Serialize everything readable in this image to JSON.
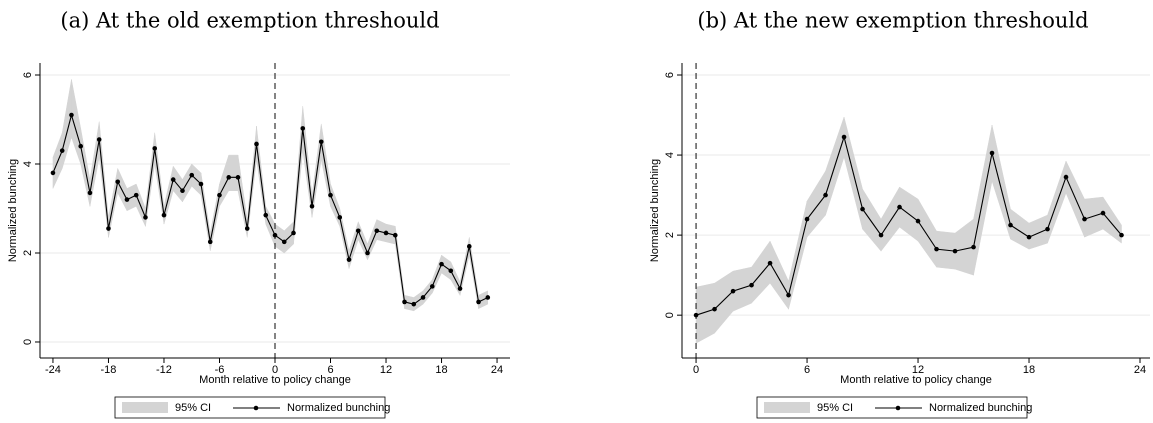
{
  "chart_data": [
    {
      "type": "line",
      "title": "(a) At the old exemption threshould",
      "xlabel": "Month relative to policy change",
      "ylabel": "Normalized bunching",
      "x": [
        -24,
        -23,
        -22,
        -21,
        -20,
        -19,
        -18,
        -17,
        -16,
        -15,
        -14,
        -13,
        -12,
        -11,
        -10,
        -9,
        -8,
        -7,
        -6,
        -5,
        -4,
        -3,
        -2,
        -1,
        0,
        1,
        2,
        3,
        4,
        5,
        6,
        7,
        8,
        9,
        10,
        11,
        12,
        13,
        14,
        15,
        16,
        17,
        18,
        19,
        20,
        21,
        22,
        23
      ],
      "series": [
        {
          "name": "95% CI",
          "color": "#d4d4d4",
          "lower": [
            3.45,
            3.9,
            4.6,
            4.0,
            3.05,
            4.15,
            2.35,
            3.35,
            2.95,
            3.05,
            2.6,
            4.0,
            2.65,
            3.4,
            3.15,
            3.5,
            3.3,
            2.05,
            3.05,
            3.4,
            3.4,
            2.35,
            4.1,
            2.65,
            2.15,
            2.0,
            2.2,
            4.3,
            2.8,
            4.1,
            3.05,
            2.6,
            1.65,
            2.3,
            1.85,
            2.3,
            2.25,
            2.2,
            0.75,
            0.7,
            0.85,
            1.1,
            1.55,
            1.4,
            1.05,
            1.95,
            0.75,
            0.85
          ],
          "upper": [
            4.15,
            4.7,
            5.9,
            4.8,
            3.65,
            4.95,
            2.8,
            3.9,
            3.45,
            3.55,
            3.0,
            4.7,
            3.05,
            3.95,
            3.65,
            4.0,
            3.8,
            2.45,
            3.55,
            4.2,
            4.2,
            2.75,
            4.85,
            3.05,
            2.65,
            2.5,
            2.7,
            5.3,
            3.3,
            4.9,
            3.55,
            3.0,
            2.05,
            2.7,
            2.2,
            2.75,
            2.65,
            2.6,
            1.05,
            1.0,
            1.15,
            1.4,
            1.95,
            1.8,
            1.35,
            2.35,
            1.05,
            1.15
          ]
        },
        {
          "name": "Normalized bunching",
          "color": "#000000",
          "values": [
            3.8,
            4.3,
            5.1,
            4.4,
            3.35,
            4.55,
            2.55,
            3.6,
            3.2,
            3.3,
            2.8,
            4.35,
            2.85,
            3.65,
            3.4,
            3.75,
            3.55,
            2.25,
            3.3,
            3.7,
            3.7,
            2.55,
            4.45,
            2.85,
            2.4,
            2.25,
            2.45,
            4.8,
            3.05,
            4.5,
            3.3,
            2.8,
            1.85,
            2.5,
            2.0,
            2.5,
            2.45,
            2.4,
            0.9,
            0.85,
            1.0,
            1.25,
            1.75,
            1.6,
            1.2,
            2.15,
            0.9,
            1.0
          ]
        }
      ],
      "ref_line_x": 0,
      "xlim": [
        -25.4,
        25.4
      ],
      "xticks": [
        -24,
        -18,
        -12,
        -6,
        0,
        6,
        12,
        18,
        24
      ],
      "ylim": [
        -0.36,
        6.27
      ],
      "yticks": [
        0,
        2,
        4,
        6
      ],
      "grid": true,
      "legend": "bottom"
    },
    {
      "type": "line",
      "title": "(b) At the new exemption threshould",
      "xlabel": "Month relative to policy change",
      "ylabel": "Normalized bunching",
      "x": [
        0,
        1,
        2,
        3,
        4,
        5,
        6,
        7,
        8,
        9,
        10,
        11,
        12,
        13,
        14,
        15,
        16,
        17,
        18,
        19,
        20,
        21,
        22,
        23
      ],
      "series": [
        {
          "name": "95% CI",
          "color": "#d4d4d4",
          "lower": [
            -0.7,
            -0.45,
            0.1,
            0.3,
            0.8,
            0.15,
            1.95,
            2.5,
            3.95,
            2.15,
            1.6,
            2.2,
            1.85,
            1.2,
            1.15,
            1.0,
            3.35,
            1.9,
            1.65,
            1.8,
            3.05,
            1.95,
            2.15,
            1.8
          ],
          "upper": [
            0.7,
            0.8,
            1.1,
            1.2,
            1.85,
            0.85,
            2.85,
            3.6,
            4.95,
            3.15,
            2.4,
            3.2,
            2.9,
            2.1,
            2.05,
            2.4,
            4.75,
            2.65,
            2.3,
            2.5,
            3.85,
            2.9,
            2.95,
            2.25
          ]
        },
        {
          "name": "Normalized bunching",
          "color": "#000000",
          "values": [
            0,
            0.15,
            0.6,
            0.75,
            1.3,
            0.5,
            2.4,
            3.0,
            4.45,
            2.65,
            2.0,
            2.7,
            2.35,
            1.65,
            1.6,
            1.7,
            4.05,
            2.25,
            1.95,
            2.15,
            3.45,
            2.4,
            2.55,
            2.0
          ]
        }
      ],
      "ref_line_x": 0,
      "xlim": [
        -0.76,
        24.54
      ],
      "xticks": [
        0,
        6,
        12,
        18,
        24
      ],
      "ylim": [
        -1.07,
        6.3
      ],
      "yticks": [
        0,
        2,
        4,
        6
      ],
      "grid": true,
      "legend": "bottom"
    }
  ]
}
